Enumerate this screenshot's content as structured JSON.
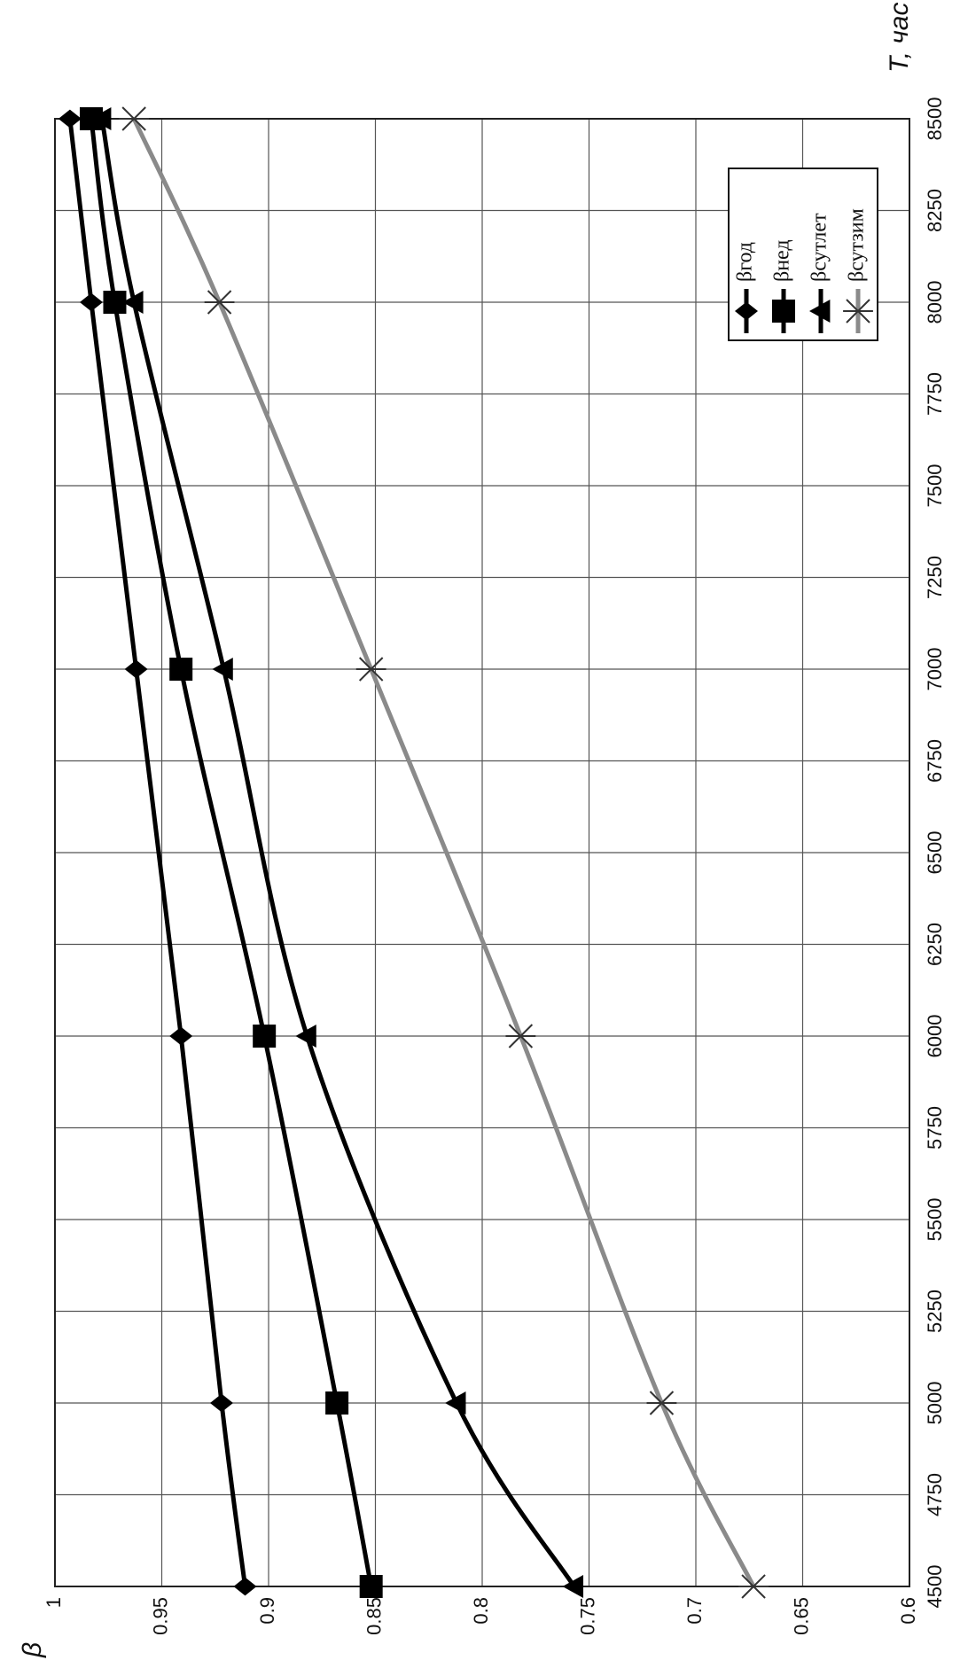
{
  "chart_data": {
    "type": "line",
    "x_label": "T, час",
    "y_label": "β",
    "x": [
      4500,
      5000,
      6000,
      7000,
      8000,
      8500
    ],
    "series": [
      {
        "name": "βгод",
        "color": "#000000",
        "marker": "diamond",
        "values": [
          0.911,
          0.922,
          0.941,
          0.962,
          0.983,
          0.993
        ]
      },
      {
        "name": "βнед",
        "color": "#000000",
        "marker": "square",
        "values": [
          0.852,
          0.868,
          0.902,
          0.941,
          0.972,
          0.983
        ]
      },
      {
        "name": "βсутлет",
        "color": "#000000",
        "marker": "triangle",
        "values": [
          0.757,
          0.812,
          0.882,
          0.921,
          0.963,
          0.978
        ]
      },
      {
        "name": "βсутзим",
        "color": "#8a8a8a",
        "marker": "x",
        "values": [
          0.673,
          0.716,
          0.782,
          0.852,
          0.923,
          0.963
        ]
      }
    ],
    "xlim": [
      4500,
      8500
    ],
    "xticks": [
      4500,
      4750,
      5000,
      5250,
      5500,
      5750,
      6000,
      6250,
      6500,
      6750,
      7000,
      7250,
      7500,
      7750,
      8000,
      8250,
      8500
    ],
    "ylim": [
      0.6,
      1
    ],
    "yticks": [
      0.6,
      0.65,
      0.7,
      0.75,
      0.8,
      0.85,
      0.9,
      0.95,
      1
    ],
    "grid": true
  }
}
